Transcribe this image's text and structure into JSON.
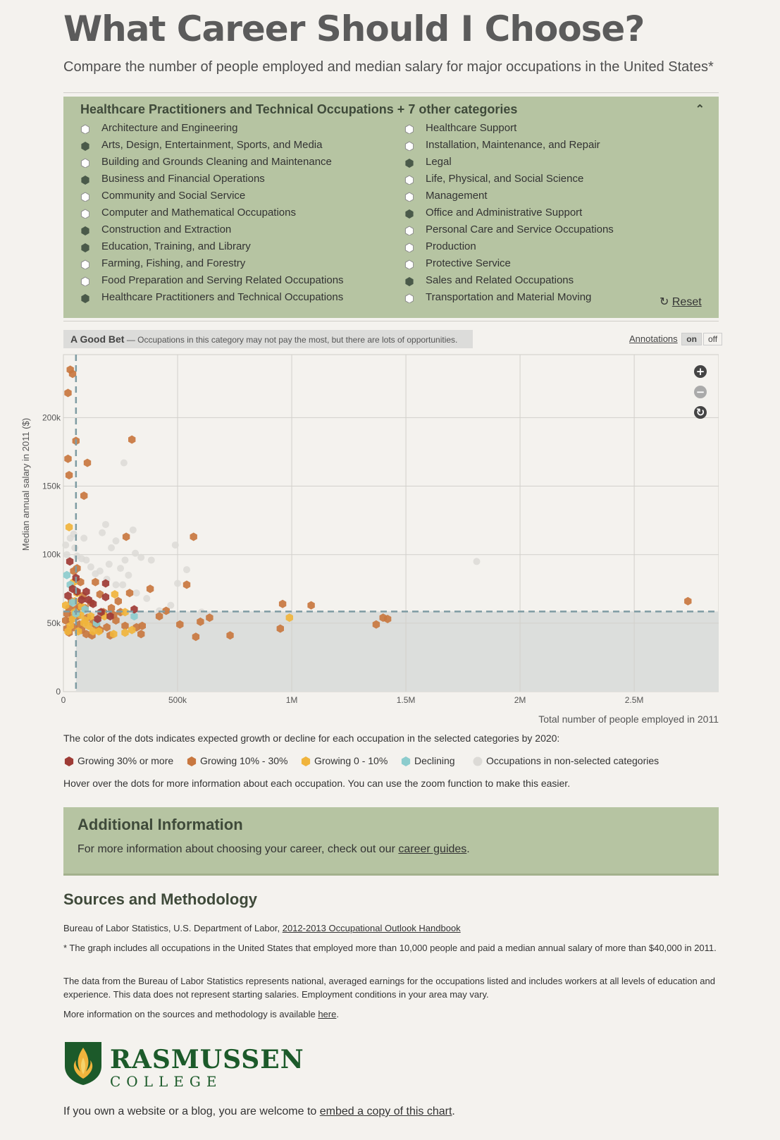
{
  "header": {
    "title": "What Career Should I Choose?",
    "subtitle": "Compare the number of people employed and median salary for major occupations in the United States*"
  },
  "filter": {
    "title": "Healthcare Practitioners and Technical Occupations + 7 other categories",
    "reset_label": "Reset",
    "categories_left": [
      {
        "label": "Architecture and Engineering",
        "selected": false
      },
      {
        "label": "Arts, Design, Entertainment, Sports, and Media",
        "selected": true
      },
      {
        "label": "Building and Grounds Cleaning and Maintenance",
        "selected": false
      },
      {
        "label": "Business and Financial Operations",
        "selected": true
      },
      {
        "label": "Community and Social Service",
        "selected": false
      },
      {
        "label": "Computer and Mathematical Occupations",
        "selected": false
      },
      {
        "label": "Construction and Extraction",
        "selected": true
      },
      {
        "label": "Education, Training, and Library",
        "selected": true
      },
      {
        "label": "Farming, Fishing, and Forestry",
        "selected": false
      },
      {
        "label": "Food Preparation and Serving Related Occupations",
        "selected": false
      },
      {
        "label": "Healthcare Practitioners and Technical Occupations",
        "selected": true
      }
    ],
    "categories_right": [
      {
        "label": "Healthcare Support",
        "selected": false
      },
      {
        "label": "Installation, Maintenance, and Repair",
        "selected": false
      },
      {
        "label": "Legal",
        "selected": true
      },
      {
        "label": "Life, Physical, and Social Science",
        "selected": false
      },
      {
        "label": "Management",
        "selected": false
      },
      {
        "label": "Office and Administrative Support",
        "selected": true
      },
      {
        "label": "Personal Care and Service Occupations",
        "selected": false
      },
      {
        "label": "Production",
        "selected": false
      },
      {
        "label": "Protective Service",
        "selected": false
      },
      {
        "label": "Sales and Related Occupations",
        "selected": true
      },
      {
        "label": "Transportation and Material Moving",
        "selected": false
      }
    ]
  },
  "annotation": {
    "title": "A Good Bet",
    "text": " — Occupations in this category may not pay the most, but there are lots of opportunities.",
    "toggle_label": "Annotations",
    "on": "on",
    "off": "off"
  },
  "colors": {
    "growing30": "#9e3b35",
    "growing10": "#c8773f",
    "growing0": "#f0b43c",
    "declining": "#8ccccd",
    "nonselected": "#dcdad6",
    "panel": "#b6c4a2",
    "threshold": "#7f9ca3"
  },
  "chart_data": {
    "type": "scatter",
    "xlabel": "Total number of people employed in 2011",
    "ylabel": "Median annual salary in 2011 ($)",
    "xlim": [
      0,
      2870000
    ],
    "ylim": [
      0,
      246000
    ],
    "x_ticks": [
      0,
      500000,
      1000000,
      1500000,
      2000000,
      2500000
    ],
    "x_tick_labels": [
      "0",
      "500k",
      "1M",
      "1.5M",
      "2M",
      "2.5M"
    ],
    "y_ticks": [
      0,
      50000,
      100000,
      150000,
      200000
    ],
    "y_tick_labels": [
      "0",
      "50k",
      "100k",
      "150k",
      "200k"
    ],
    "threshold": {
      "x": 55000,
      "y": 58500
    },
    "series": [
      {
        "name": "Growing 30% or more",
        "key": "growing30",
        "points": [
          [
            28000,
            95000
          ],
          [
            55000,
            83000
          ],
          [
            100000,
            73000
          ],
          [
            185000,
            79000
          ],
          [
            185000,
            69000
          ],
          [
            130000,
            64000
          ],
          [
            80000,
            67000
          ],
          [
            40000,
            75000
          ],
          [
            310000,
            60000
          ],
          [
            165000,
            58000
          ],
          [
            205000,
            55000
          ],
          [
            20000,
            70000
          ],
          [
            60000,
            73000
          ],
          [
            110000,
            67000
          ],
          [
            150000,
            53000
          ]
        ]
      },
      {
        "name": "Growing 10% - 30%",
        "key": "growing10",
        "points": [
          [
            30000,
            235000
          ],
          [
            40000,
            232000
          ],
          [
            20000,
            218000
          ],
          [
            55000,
            183000
          ],
          [
            300000,
            184000
          ],
          [
            20000,
            170000
          ],
          [
            105000,
            167000
          ],
          [
            25000,
            158000
          ],
          [
            90000,
            143000
          ],
          [
            275000,
            113000
          ],
          [
            570000,
            113000
          ],
          [
            540000,
            78000
          ],
          [
            380000,
            75000
          ],
          [
            960000,
            64000
          ],
          [
            1085000,
            63000
          ],
          [
            2735000,
            66000
          ],
          [
            160000,
            71000
          ],
          [
            290000,
            72000
          ],
          [
            140000,
            80000
          ],
          [
            75000,
            80000
          ],
          [
            60000,
            90000
          ],
          [
            45000,
            88000
          ],
          [
            450000,
            59000
          ],
          [
            420000,
            55000
          ],
          [
            600000,
            51000
          ],
          [
            640000,
            54000
          ],
          [
            510000,
            49000
          ],
          [
            580000,
            40000
          ],
          [
            730000,
            41000
          ],
          [
            950000,
            46000
          ],
          [
            1370000,
            49000
          ],
          [
            1400000,
            54000
          ],
          [
            1420000,
            53000
          ],
          [
            320000,
            47000
          ],
          [
            345000,
            48000
          ],
          [
            340000,
            42000
          ],
          [
            270000,
            48000
          ],
          [
            250000,
            58000
          ],
          [
            210000,
            61000
          ],
          [
            220000,
            56000
          ],
          [
            230000,
            52000
          ],
          [
            190000,
            47000
          ],
          [
            160000,
            45000
          ],
          [
            130000,
            50000
          ],
          [
            105000,
            54000
          ],
          [
            95000,
            61000
          ],
          [
            120000,
            65000
          ],
          [
            85000,
            70000
          ],
          [
            70000,
            62000
          ],
          [
            35000,
            66000
          ],
          [
            25000,
            61000
          ],
          [
            15000,
            57000
          ],
          [
            10000,
            52000
          ],
          [
            15000,
            46000
          ],
          [
            25000,
            43000
          ],
          [
            45000,
            47000
          ],
          [
            60000,
            55000
          ],
          [
            70000,
            49000
          ],
          [
            100000,
            42000
          ],
          [
            125000,
            41000
          ],
          [
            145000,
            48000
          ],
          [
            175000,
            58000
          ],
          [
            240000,
            66000
          ],
          [
            205000,
            41000
          ],
          [
            40000,
            56000
          ],
          [
            55000,
            60000
          ],
          [
            30000,
            52000
          ],
          [
            80000,
            45000
          ]
        ]
      },
      {
        "name": "Growing 0 - 10%",
        "key": "growing0",
        "points": [
          [
            25000,
            120000
          ],
          [
            225000,
            71000
          ],
          [
            270000,
            58000
          ],
          [
            990000,
            54000
          ],
          [
            80000,
            62000
          ],
          [
            60000,
            72000
          ],
          [
            50000,
            58000
          ],
          [
            95000,
            52000
          ],
          [
            120000,
            55000
          ],
          [
            40000,
            53000
          ],
          [
            30000,
            48000
          ],
          [
            20000,
            44000
          ],
          [
            65000,
            44000
          ],
          [
            110000,
            48000
          ],
          [
            155000,
            44000
          ],
          [
            220000,
            42000
          ],
          [
            270000,
            43000
          ],
          [
            300000,
            45000
          ],
          [
            130000,
            44000
          ],
          [
            50000,
            66000
          ],
          [
            75000,
            56000
          ],
          [
            180000,
            55000
          ],
          [
            10000,
            63000
          ],
          [
            45000,
            80000
          ],
          [
            90000,
            50000
          ]
        ]
      },
      {
        "name": "Declining",
        "key": "declining",
        "points": [
          [
            15000,
            85000
          ],
          [
            310000,
            55000
          ],
          [
            145000,
            50000
          ],
          [
            95000,
            60000
          ],
          [
            30000,
            78000
          ],
          [
            40000,
            65000
          ],
          [
            55000,
            57000
          ]
        ]
      },
      {
        "name": "Occupations in non-selected categories",
        "key": "nonselected",
        "points": [
          [
            265000,
            167000
          ],
          [
            305000,
            118000
          ],
          [
            185000,
            122000
          ],
          [
            170000,
            116000
          ],
          [
            210000,
            105000
          ],
          [
            230000,
            110000
          ],
          [
            315000,
            101000
          ],
          [
            340000,
            98000
          ],
          [
            385000,
            96000
          ],
          [
            490000,
            107000
          ],
          [
            540000,
            89000
          ],
          [
            1810000,
            95000
          ],
          [
            10000,
            107000
          ],
          [
            15000,
            100000
          ],
          [
            50000,
            105000
          ],
          [
            60000,
            99000
          ],
          [
            80000,
            97000
          ],
          [
            100000,
            96000
          ],
          [
            120000,
            91000
          ],
          [
            140000,
            86000
          ],
          [
            160000,
            88000
          ],
          [
            190000,
            82000
          ],
          [
            230000,
            78000
          ],
          [
            260000,
            78000
          ],
          [
            285000,
            85000
          ],
          [
            320000,
            72000
          ],
          [
            365000,
            68000
          ],
          [
            420000,
            59000
          ],
          [
            470000,
            63000
          ],
          [
            500000,
            79000
          ],
          [
            605000,
            58000
          ],
          [
            200000,
            93000
          ],
          [
            250000,
            90000
          ],
          [
            45000,
            115000
          ],
          [
            90000,
            112000
          ],
          [
            30000,
            112000
          ],
          [
            270000,
            96000
          ]
        ]
      }
    ]
  },
  "zoom": {
    "in_icon": "zoom-in-icon",
    "out_icon": "zoom-out-icon",
    "reset_icon": "reset-zoom-icon"
  },
  "legend": {
    "intro": "The color of the dots indicates expected growth or decline for each occupation in the selected categories by 2020:",
    "items": [
      "Growing 30% or more",
      "Growing 10% - 30%",
      "Growing 0 - 10%",
      "Declining",
      "Occupations in non-selected categories"
    ],
    "hover_note": "Hover over the dots for more information about each occupation. You can use the zoom function to make this easier."
  },
  "additional_info": {
    "title": "Additional Information",
    "text_before": "For more information about choosing your career, check out our ",
    "link": "career guides",
    "text_after": "."
  },
  "sources": {
    "title": "Sources and Methodology",
    "citation_before": "Bureau of Labor Statistics, U.S. Department of Labor, ",
    "citation_link": "2012-2013 Occupational Outlook Handbook",
    "footnote": "* The graph includes all occupations in the United States that employed more than 10,000 people and paid a median annual salary of more than $40,000 in 2011.",
    "note": "The data from the Bureau of Labor Statistics represents national, averaged earnings for the occupations listed and includes workers at all levels of education and experience. This data does not represent starting salaries. Employment conditions in your area may vary.",
    "more_before": "More information on the sources and methodology is available ",
    "more_link": "here",
    "more_after": "."
  },
  "logo": {
    "name": "RASMUSSEN",
    "sub": "COLLEGE"
  },
  "embed": {
    "text_before": "If you own a website or a blog, you are welcome to ",
    "link": "embed a copy of this chart",
    "text_after": "."
  }
}
